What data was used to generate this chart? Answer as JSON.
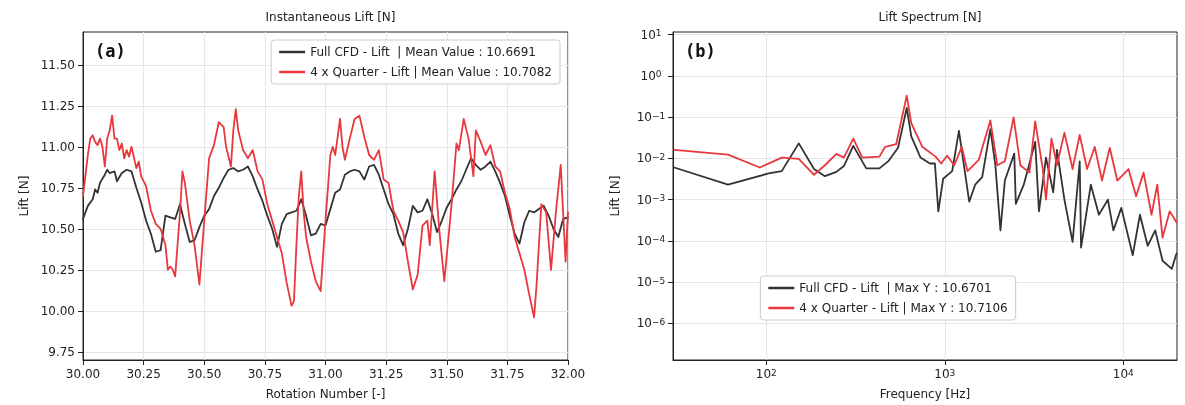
{
  "chart_data": [
    {
      "type": "line",
      "title": "Instantaneous Lift [N]",
      "xlabel": "Rotation Number [-]",
      "ylabel": "Lift [N]",
      "annotations": [
        "(a)"
      ],
      "xlim": [
        30,
        32
      ],
      "ylim": [
        9.7,
        11.7
      ],
      "xticks": [
        {
          "value": 30,
          "label": "30.00"
        },
        {
          "value": 30.25,
          "label": "30.25"
        },
        {
          "value": 30.5,
          "label": "30.50"
        },
        {
          "value": 30.75,
          "label": "30.75"
        },
        {
          "value": 31,
          "label": "31.00"
        },
        {
          "value": 31.25,
          "label": "31.25"
        },
        {
          "value": 31.5,
          "label": "31.50"
        },
        {
          "value": 31.75,
          "label": "31.75"
        },
        {
          "value": 32,
          "label": "32.00"
        }
      ],
      "yticks": [
        {
          "value": 9.75,
          "label": "9.75"
        },
        {
          "value": 10,
          "label": "10.00"
        },
        {
          "value": 10.25,
          "label": "10.25"
        },
        {
          "value": 10.5,
          "label": "10.50"
        },
        {
          "value": 10.75,
          "label": "10.75"
        },
        {
          "value": 11,
          "label": "11.00"
        },
        {
          "value": 11.25,
          "label": "11.25"
        },
        {
          "value": 11.5,
          "label": "11.50"
        }
      ],
      "grid": true,
      "legend": "top right",
      "marker": "none",
      "line_style": "solid",
      "series": [
        {
          "name": "Full CFD - Lift  | Mean Value : 10.6691",
          "color": "#333333",
          "x": [
            30.0,
            30.02,
            30.04,
            30.05,
            30.06,
            30.07,
            30.09,
            30.1,
            30.11,
            30.13,
            30.14,
            30.16,
            30.18,
            30.2,
            30.22,
            30.24,
            30.26,
            30.28,
            30.3,
            30.32,
            30.34,
            30.36,
            30.38,
            30.4,
            30.42,
            30.44,
            30.46,
            30.48,
            30.5,
            30.52,
            30.54,
            30.56,
            30.58,
            30.6,
            30.62,
            30.64,
            30.66,
            30.68,
            30.7,
            30.72,
            30.74,
            30.76,
            30.78,
            30.8,
            30.82,
            30.84,
            30.86,
            30.88,
            30.9,
            30.92,
            30.94,
            30.96,
            30.98,
            31.0,
            31.02,
            31.04,
            31.06,
            31.08,
            31.1,
            31.12,
            31.14,
            31.16,
            31.18,
            31.2,
            31.22,
            31.24,
            31.26,
            31.28,
            31.3,
            31.32,
            31.34,
            31.36,
            31.38,
            31.4,
            31.42,
            31.44,
            31.46,
            31.48,
            31.5,
            31.52,
            31.54,
            31.56,
            31.58,
            31.6,
            31.62,
            31.64,
            31.66,
            31.68,
            31.7,
            31.72,
            31.74,
            31.76,
            31.78,
            31.8,
            31.82,
            31.84,
            31.86,
            31.88,
            31.9,
            31.92,
            31.94,
            31.96,
            31.98,
            32.0
          ],
          "values": [
            10.56,
            10.64,
            10.68,
            10.74,
            10.72,
            10.78,
            10.83,
            10.86,
            10.84,
            10.85,
            10.79,
            10.84,
            10.86,
            10.85,
            10.75,
            10.66,
            10.55,
            10.47,
            10.36,
            10.37,
            10.58,
            10.57,
            10.56,
            10.65,
            10.53,
            10.42,
            10.43,
            10.51,
            10.58,
            10.62,
            10.7,
            10.75,
            10.81,
            10.86,
            10.87,
            10.85,
            10.86,
            10.88,
            10.82,
            10.74,
            10.67,
            10.58,
            10.5,
            10.39,
            10.53,
            10.59,
            10.6,
            10.61,
            10.68,
            10.58,
            10.46,
            10.47,
            10.53,
            10.52,
            10.62,
            10.72,
            10.74,
            10.83,
            10.85,
            10.86,
            10.85,
            10.8,
            10.88,
            10.89,
            10.83,
            10.74,
            10.65,
            10.59,
            10.47,
            10.4,
            10.5,
            10.64,
            10.6,
            10.61,
            10.68,
            10.59,
            10.48,
            10.55,
            10.63,
            10.68,
            10.74,
            10.79,
            10.86,
            10.93,
            10.89,
            10.86,
            10.88,
            10.91,
            10.85,
            10.78,
            10.7,
            10.58,
            10.47,
            10.41,
            10.54,
            10.61,
            10.6,
            10.62,
            10.64,
            10.58,
            10.5,
            10.45,
            10.56,
            10.57
          ]
        },
        {
          "name": "4 x Quarter - Lift | Mean Value : 10.7082",
          "color": "#e8383d",
          "x": [
            30.0,
            30.02,
            30.03,
            30.04,
            30.05,
            30.06,
            30.07,
            30.08,
            30.09,
            30.1,
            30.11,
            30.12,
            30.13,
            30.14,
            30.15,
            30.16,
            30.17,
            30.18,
            30.19,
            30.2,
            30.22,
            30.23,
            30.24,
            30.26,
            30.28,
            30.3,
            30.32,
            30.34,
            30.35,
            30.36,
            30.37,
            30.38,
            30.4,
            30.41,
            30.42,
            30.44,
            30.46,
            30.48,
            30.5,
            30.52,
            30.54,
            30.56,
            30.58,
            30.59,
            30.61,
            30.62,
            30.63,
            30.64,
            30.66,
            30.68,
            30.7,
            30.72,
            30.74,
            30.76,
            30.78,
            30.8,
            30.82,
            30.84,
            30.86,
            30.87,
            30.88,
            30.89,
            30.9,
            30.91,
            30.92,
            30.94,
            30.96,
            30.98,
            31.0,
            31.02,
            31.03,
            31.04,
            31.06,
            31.07,
            31.08,
            31.1,
            31.12,
            31.14,
            31.16,
            31.18,
            31.2,
            31.22,
            31.24,
            31.26,
            31.28,
            31.3,
            31.32,
            31.34,
            31.36,
            31.38,
            31.4,
            31.42,
            31.43,
            31.45,
            31.47,
            31.49,
            31.52,
            31.54,
            31.55,
            31.57,
            31.59,
            31.61,
            31.62,
            31.64,
            31.66,
            31.68,
            31.7,
            31.72,
            31.74,
            31.76,
            31.78,
            31.8,
            31.82,
            31.84,
            31.86,
            31.87,
            31.89,
            31.91,
            31.93,
            31.95,
            31.97,
            31.99,
            32.0
          ],
          "values": [
            10.7,
            10.95,
            11.05,
            11.07,
            11.03,
            11.01,
            11.05,
            11.0,
            10.88,
            11.05,
            11.1,
            11.19,
            11.05,
            11.05,
            10.98,
            11.02,
            10.93,
            10.98,
            10.94,
            11.0,
            10.87,
            10.91,
            10.82,
            10.76,
            10.61,
            10.53,
            10.5,
            10.4,
            10.25,
            10.27,
            10.25,
            10.21,
            10.6,
            10.85,
            10.78,
            10.55,
            10.4,
            10.16,
            10.55,
            10.93,
            11.01,
            11.15,
            11.12,
            11.0,
            10.88,
            11.1,
            11.23,
            11.1,
            10.98,
            10.93,
            10.98,
            10.85,
            10.8,
            10.65,
            10.55,
            10.45,
            10.35,
            10.17,
            10.03,
            10.06,
            10.4,
            10.7,
            10.85,
            10.6,
            10.45,
            10.3,
            10.18,
            10.12,
            10.55,
            10.95,
            11.0,
            10.95,
            11.17,
            11.0,
            10.92,
            11.05,
            11.17,
            11.19,
            11.06,
            10.95,
            10.92,
            10.98,
            10.8,
            10.78,
            10.61,
            10.55,
            10.48,
            10.3,
            10.13,
            10.22,
            10.52,
            10.55,
            10.4,
            10.85,
            10.48,
            10.18,
            10.65,
            11.02,
            10.98,
            11.17,
            11.05,
            10.82,
            11.1,
            11.03,
            10.95,
            11.01,
            10.88,
            10.85,
            10.72,
            10.62,
            10.45,
            10.35,
            10.25,
            10.1,
            9.96,
            10.15,
            10.65,
            10.6,
            10.25,
            10.6,
            10.89,
            10.3,
            10.6
          ]
        }
      ]
    },
    {
      "type": "line",
      "title": "Lift Spectrum [N]",
      "xlabel": "Frequency [Hz]",
      "ylabel": "Lift [N]",
      "annotations": [
        "(b)"
      ],
      "log": "xy",
      "xlim": [
        30,
        20000
      ],
      "ylim": [
        1.3e-07,
        11.5
      ],
      "xticks": [
        {
          "value": 100,
          "label": "10$^{2}$"
        },
        {
          "value": 1000,
          "label": "10$^{3}$"
        },
        {
          "value": 10000,
          "label": "10$^{4}$"
        }
      ],
      "yticks": [
        {
          "value": 1e-06,
          "label": "10$^{−6}$"
        },
        {
          "value": 1e-05,
          "label": "10$^{−5}$"
        },
        {
          "value": 0.0001,
          "label": "10$^{−4}$"
        },
        {
          "value": 0.001,
          "label": "10$^{−3}$"
        },
        {
          "value": 0.01,
          "label": "10$^{−2}$"
        },
        {
          "value": 0.1,
          "label": "10$^{−1}$"
        },
        {
          "value": 1,
          "label": "10$^{0}$"
        },
        {
          "value": 10,
          "label": "10$^{1}$"
        }
      ],
      "grid": true,
      "legend": "bottom",
      "marker": "none",
      "line_style": "solid",
      "series": [
        {
          "name": "Full CFD - Lift  | Max Y : 10.6701",
          "color": "#333333",
          "x": [
            30.5,
            61,
            103,
            122,
            152,
            185,
            213,
            247,
            272,
            307,
            363,
            430,
            485,
            547,
            612,
            649,
            730,
            826,
            880,
            920,
            979,
            1100,
            1200,
            1280,
            1370,
            1480,
            1620,
            1800,
            1920,
            2050,
            2170,
            2450,
            2500,
            2770,
            3210,
            3370,
            3690,
            4050,
            4250,
            4680,
            5200,
            5700,
            5800,
            6580,
            7300,
            8200,
            8800,
            9750,
            11300,
            12400,
            13700,
            15100,
            16600,
            18700,
            19900
          ],
          "values": [
            0.006,
            0.0023,
            0.0043,
            0.0049,
            0.023,
            0.0055,
            0.0037,
            0.0047,
            0.0065,
            0.02,
            0.0057,
            0.0057,
            0.0087,
            0.018,
            0.166,
            0.034,
            0.0105,
            0.0075,
            0.0075,
            0.00052,
            0.0032,
            0.0049,
            0.046,
            0.0068,
            0.00089,
            0.0023,
            0.0035,
            0.051,
            0.0068,
            0.00018,
            0.0029,
            0.013,
            0.00079,
            0.0023,
            0.025,
            0.00052,
            0.0104,
            0.0015,
            0.016,
            0.001,
            9.5e-05,
            0.0084,
            6.9e-05,
            0.0023,
            0.00043,
            0.001,
            0.00018,
            0.00063,
            4.5e-05,
            0.00043,
            7.6e-05,
            0.00018,
            3.3e-05,
            2.1e-05,
            5e-05
          ]
        },
        {
          "name": "4 x Quarter - Lift | Max Y : 10.7106",
          "color": "#e8383d",
          "x": [
            30.5,
            61,
            92,
            122,
            152,
            185,
            213,
            247,
            272,
            307,
            345,
            430,
            464,
            534,
            612,
            649,
            748,
            888,
            955,
            1030,
            1130,
            1245,
            1340,
            1550,
            1800,
            1970,
            2170,
            2430,
            2650,
            2980,
            3210,
            3540,
            3690,
            3960,
            4250,
            4680,
            5200,
            5700,
            6270,
            6920,
            7600,
            8400,
            9260,
            10700,
            11800,
            13000,
            14400,
            15500,
            16600,
            18200,
            19900
          ],
          "values": [
            0.016,
            0.0123,
            0.006,
            0.0104,
            0.0097,
            0.004,
            0.0068,
            0.0128,
            0.0104,
            0.03,
            0.0104,
            0.011,
            0.019,
            0.022,
            0.33,
            0.071,
            0.019,
            0.011,
            0.0075,
            0.0115,
            0.0068,
            0.019,
            0.0049,
            0.0092,
            0.083,
            0.0068,
            0.0085,
            0.098,
            0.0068,
            0.0045,
            0.079,
            0.0055,
            0.001,
            0.03,
            0.0068,
            0.042,
            0.0055,
            0.037,
            0.0055,
            0.019,
            0.0029,
            0.018,
            0.0029,
            0.0055,
            0.0012,
            0.0045,
            0.00043,
            0.0023,
            0.00012,
            0.00052,
            0.00028
          ]
        }
      ]
    }
  ]
}
